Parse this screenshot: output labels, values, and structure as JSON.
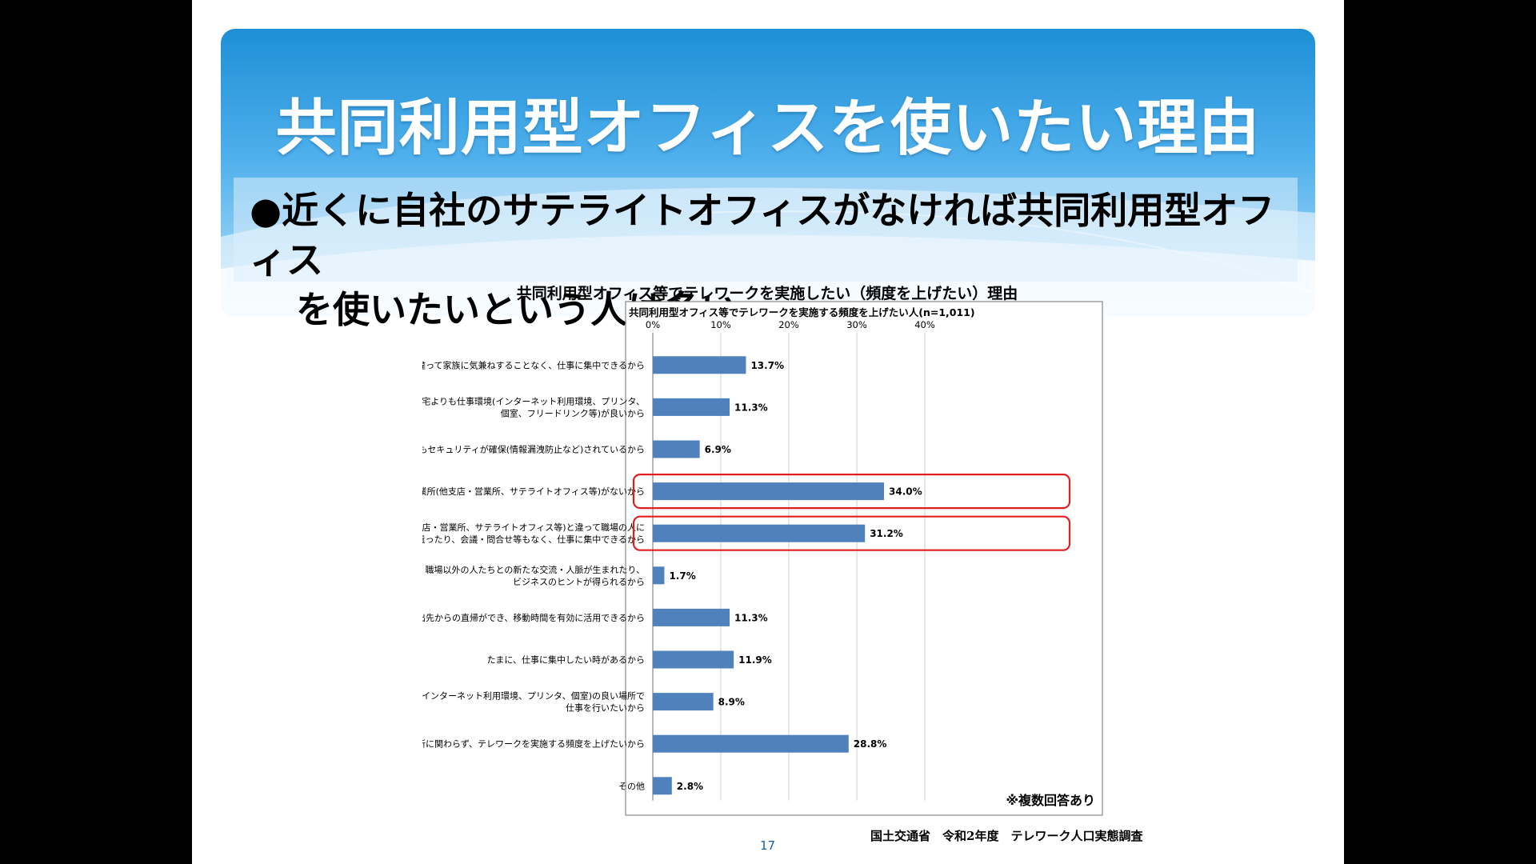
{
  "slide": {
    "title": "共同利用型オフィスを使いたい理由",
    "subtitle_line1": "●近くに自社のサテライトオフィスがなければ共同利用型オフィス",
    "subtitle_line2": "を使いたいという人は多い",
    "page_number": "17",
    "source": "国土交通省　令和2年度　テレワーク人口実態調査"
  },
  "chart_data": {
    "type": "bar",
    "orientation": "horizontal",
    "title": "共同利用型オフィス等でテレワークを実施したい（頻度を上げたい）理由",
    "subtitle": "共同利用型オフィス等でテレワークを実施する頻度を上げたい人(n=1,011)",
    "xlim": [
      0,
      40
    ],
    "ticks": [
      "0%",
      "10%",
      "20%",
      "30%",
      "40%"
    ],
    "tick_values": [
      0,
      10,
      20,
      30,
      40
    ],
    "grid": true,
    "note": "※複数回答あり",
    "bar_color": "#4f81bd",
    "highlight_color": "#e02020",
    "categories": [
      [
        "自宅と違って家族に気兼ねすることなく、仕事に集中できるから"
      ],
      [
        "自宅よりも仕事環境(インターネット利用環境、プリンタ、",
        "個室、フリードリンク等)が良いから"
      ],
      [
        "自宅よりもセキュリティが確保(情報漏洩防止など)されているから"
      ],
      [
        "近くに自社の他事業所(他支店・営業所、サテライトオフィス等)がないから"
      ],
      [
        "自社の他事業所(他支店・営業所、サテライトオフィス等)と違って職場の人に",
        "気を遣ったり、会議・問合せ等もなく、仕事に集中できるから"
      ],
      [
        "職場以外の人たちとの新たな交流・人脈が生まれたり、",
        "ビジネスのヒントが得られるから"
      ],
      [
        "出先への直行や出先からの直帰ができ、移動時間を有効に活用できるから"
      ],
      [
        "たまに、仕事に集中したい時があるから"
      ],
      [
        "たまに、仕事環境(インターネット利用環境、プリンタ、個室)の良い場所で",
        "仕事を行いたいから"
      ],
      [
        "場所に関わらず、テレワークを実施する頻度を上げたいから"
      ],
      [
        "その他"
      ]
    ],
    "values": [
      13.7,
      11.3,
      6.9,
      34.0,
      31.2,
      1.7,
      11.3,
      11.9,
      8.9,
      28.8,
      2.8
    ],
    "value_labels": [
      "13.7%",
      "11.3%",
      "6.9%",
      "34.0%",
      "31.2%",
      "1.7%",
      "11.3%",
      "11.9%",
      "8.9%",
      "28.8%",
      "2.8%"
    ],
    "highlighted": [
      3,
      4
    ]
  }
}
